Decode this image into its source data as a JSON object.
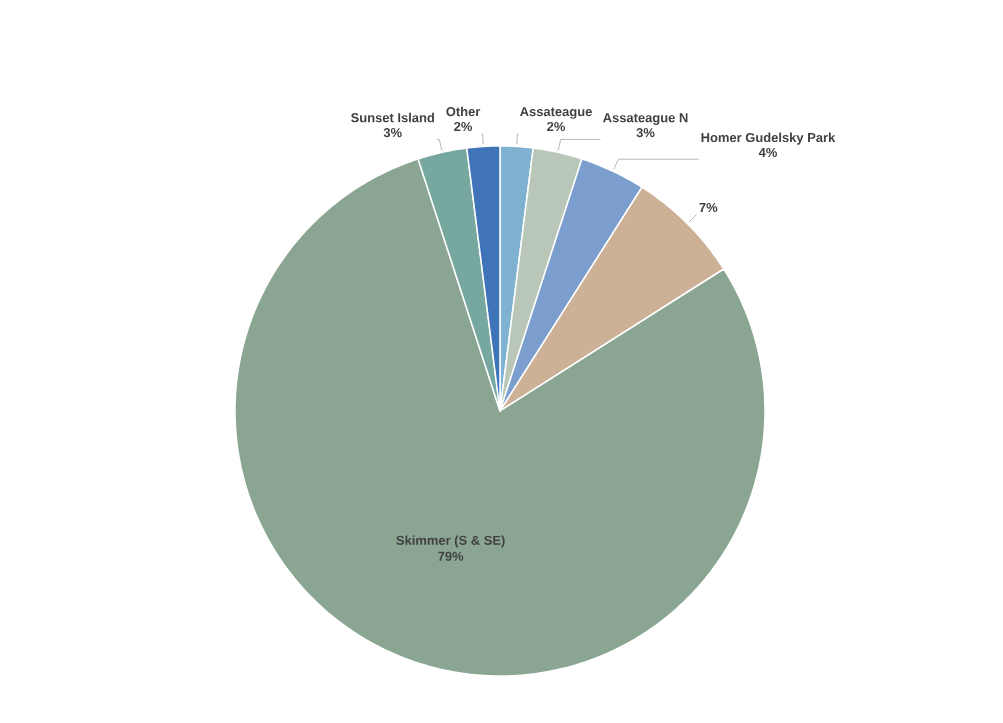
{
  "chart_data": {
    "type": "pie",
    "categories": [
      "Assateague",
      "Assateague N",
      "Homer Gudelsky Park",
      null,
      "Skimmer (S & SE)",
      "Sunset Island",
      "Other"
    ],
    "values": [
      2,
      3,
      4,
      7,
      79,
      3,
      2
    ],
    "colors": [
      "#7fb2d0",
      "#b8c7b8",
      "#7b9ece",
      "#cdb196",
      "#8ba593",
      "#77a8a0",
      "#3f74b8"
    ],
    "value_labels": [
      "2%",
      "3%",
      "4%",
      "7%",
      "79%",
      "3%",
      "2%"
    ]
  }
}
